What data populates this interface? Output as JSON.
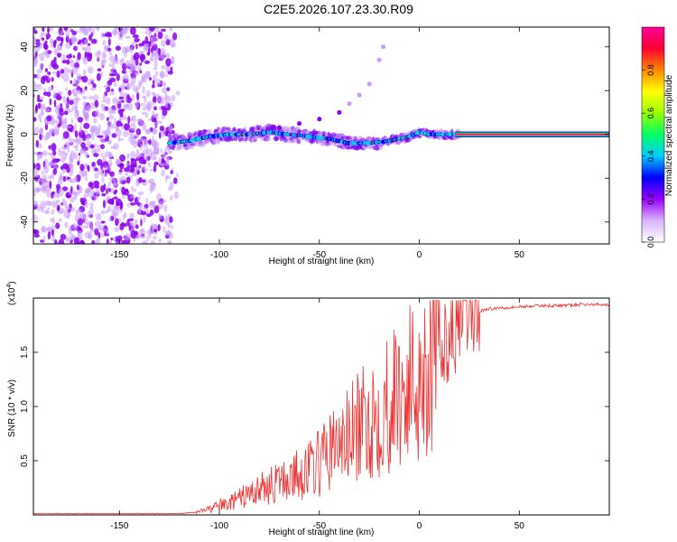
{
  "title": "C2E5.2026.107.23.30.R09",
  "chart_data": [
    {
      "type": "heatmap",
      "name": "spectrogram",
      "xlabel": "Height of straight line (km)",
      "ylabel": "Frequency (Hz)",
      "xlim": [
        -193,
        95
      ],
      "ylim": [
        -50,
        49
      ],
      "xticks": [
        -150,
        -100,
        -50,
        0,
        50
      ],
      "xtick_labels": [
        "-150",
        "-100",
        "-50",
        "0",
        "50"
      ],
      "yticks": [
        -40,
        -20,
        0,
        20,
        40
      ],
      "ytick_labels": [
        "-40",
        "-20",
        "0",
        "20",
        "40"
      ],
      "noise_region_x": [
        -193,
        -120
      ],
      "signal_trace": {
        "x": [
          -125,
          -115,
          -105,
          -95,
          -85,
          -75,
          -65,
          -55,
          -45,
          -35,
          -25,
          -15,
          -5,
          0,
          5,
          15,
          20,
          95
        ],
        "freq": [
          -4,
          -3,
          -1,
          0,
          0,
          1,
          0,
          -1,
          -2,
          -4,
          -4,
          -3,
          -1,
          1,
          0,
          0,
          0,
          0
        ]
      },
      "chirp_trace": {
        "x": [
          -70,
          -60,
          -50,
          -40,
          -35,
          -30,
          -25,
          -20,
          -18
        ],
        "freq": [
          3,
          5,
          7,
          10,
          14,
          18,
          23,
          34,
          40
        ]
      },
      "colorbar": {
        "label": "Normalized spectral amplitude",
        "range": [
          0,
          1
        ],
        "ticks": [
          0.0,
          0.2,
          0.4,
          0.6,
          0.8
        ],
        "tick_labels": [
          "0.0",
          "0.2",
          "0.4",
          "0.6",
          "0.8"
        ],
        "colors": [
          "#ffffff",
          "#d9b3ff",
          "#9900ff",
          "#0000ff",
          "#00ccff",
          "#00ff66",
          "#99ff00",
          "#ffff00",
          "#ff8800",
          "#ff0033",
          "#ff0099"
        ]
      }
    },
    {
      "type": "line",
      "name": "snr",
      "xlabel": "Height of straight line (km)",
      "ylabel": "SNR (10 * v/v)",
      "scale_label": "(x10",
      "scale_exp": "4",
      "scale_close": ")",
      "xlim": [
        -193,
        95
      ],
      "ylim": [
        0,
        2.0
      ],
      "xticks": [
        -150,
        -100,
        -50,
        0,
        50
      ],
      "xtick_labels": [
        "-150",
        "-100",
        "-50",
        "0",
        "50"
      ],
      "yticks": [
        0.5,
        1.0,
        1.5
      ],
      "ytick_labels": [
        "0.5",
        "1.0",
        "1.5"
      ],
      "color": "#ee3333",
      "series": {
        "name": "SNR",
        "x": [
          -193,
          -120,
          -112,
          -105,
          -100,
          -95,
          -90,
          -85,
          -80,
          -75,
          -70,
          -65,
          -60,
          -55,
          -50,
          -45,
          -40,
          -35,
          -30,
          -25,
          -20,
          -15,
          -10,
          -5,
          0,
          5,
          10,
          15,
          20,
          25,
          30,
          35,
          40,
          50,
          60,
          70,
          80,
          95
        ],
        "y": [
          0.01,
          0.01,
          0.02,
          0.05,
          0.08,
          0.1,
          0.14,
          0.18,
          0.22,
          0.25,
          0.28,
          0.32,
          0.35,
          0.4,
          0.45,
          0.55,
          0.6,
          0.68,
          0.75,
          0.82,
          0.9,
          0.98,
          1.05,
          1.12,
          1.2,
          1.3,
          1.45,
          1.6,
          1.72,
          1.82,
          1.88,
          1.9,
          1.91,
          1.92,
          1.93,
          1.93,
          1.94,
          1.94
        ]
      }
    }
  ]
}
